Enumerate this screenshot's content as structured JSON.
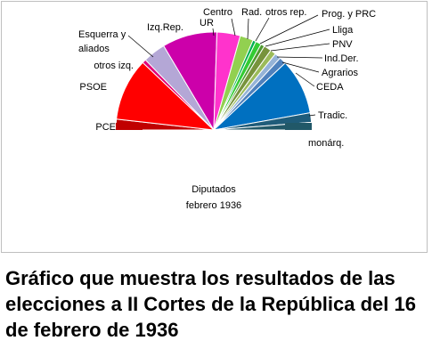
{
  "caption": "Gráfico que muestra los resultados de las elecciones a II Cortes de la República del 16 de febrero de 1936",
  "chart_data": {
    "type": "pie",
    "variant": "semicircle-parliament",
    "center_text": [
      "Diputados",
      "febrero 1936"
    ],
    "slices": [
      {
        "label": "PCE",
        "value": 17,
        "color": "#c00000"
      },
      {
        "label": "PSOE",
        "value": 99,
        "color": "#ff0000"
      },
      {
        "label": "otros izq.",
        "value": 6,
        "color": "#e0007a"
      },
      {
        "label": "Esquerra y aliados",
        "value": 36,
        "color": "#b4a7d6"
      },
      {
        "label": "Izq.Rep.",
        "value": 87,
        "color": "#cc00aa"
      },
      {
        "label": "UR",
        "value": 37,
        "color": "#ff33cc"
      },
      {
        "label": "Centro",
        "value": 21,
        "color": "#92d050"
      },
      {
        "label": "Rad.",
        "value": 5,
        "color": "#00b050"
      },
      {
        "label": "otros rep.",
        "value": 9,
        "color": "#33cc33"
      },
      {
        "label": "Prog. y PRC",
        "value": 6,
        "color": "#4f9a2f"
      },
      {
        "label": "Lliga",
        "value": 12,
        "color": "#77933c"
      },
      {
        "label": "PNV",
        "value": 9,
        "color": "#9bbb59"
      },
      {
        "label": "Ind.Der.",
        "value": 10,
        "color": "#95b3d7"
      },
      {
        "label": "Agrarios",
        "value": 11,
        "color": "#4f81bd"
      },
      {
        "label": "CEDA",
        "value": 88,
        "color": "#0070c0"
      },
      {
        "label": "Tradic.",
        "value": 15,
        "color": "#1f5c7a"
      },
      {
        "label": "monárq.",
        "value": 12,
        "color": "#215868"
      }
    ],
    "label_lines": {
      "Esquerra y aliados": [
        "Esquerra y",
        "aliados"
      ]
    }
  }
}
